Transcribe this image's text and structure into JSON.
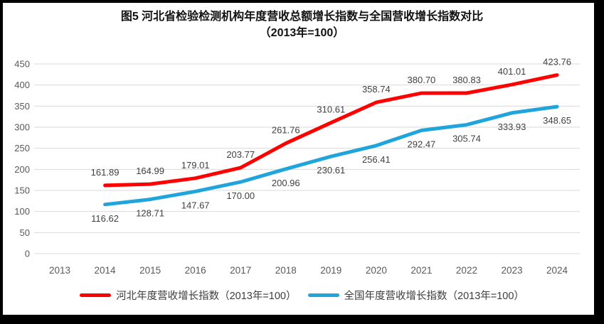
{
  "figure": {
    "title_line1": "图5  河北省检验检测机构年度营收总额增长指数与全国营收增长指数对比",
    "title_line2": "（2013年=100）"
  },
  "chart_data": {
    "type": "line",
    "title": "图5 河北省检验检测机构年度营收总额增长指数与全国营收增长指数对比（2013年=100）",
    "categories": [
      "2013",
      "2014",
      "2015",
      "2016",
      "2017",
      "2018",
      "2019",
      "2020",
      "2021",
      "2022",
      "2023",
      "2024"
    ],
    "series": [
      {
        "key": "hebei",
        "name": "河北年度营收增长指数（2013年=100）",
        "color": "#FF0000",
        "label_position": "above",
        "values": [
          null,
          161.89,
          164.99,
          179.01,
          203.77,
          261.76,
          310.61,
          358.74,
          380.7,
          380.83,
          401.01,
          423.76
        ]
      },
      {
        "key": "national",
        "name": "全国年度营收增长指数（2013年=100）",
        "color": "#1FA4DC",
        "label_position": "below",
        "values": [
          null,
          116.62,
          128.71,
          147.67,
          170.0,
          200.96,
          230.61,
          256.41,
          292.47,
          305.74,
          333.93,
          348.65
        ]
      }
    ],
    "xlabel": "",
    "ylabel": "",
    "ylim": [
      0,
      450
    ],
    "y_step": 50,
    "grid": true,
    "legend_position": "bottom",
    "colors": {
      "gridline": "#D9D9D9",
      "tick_label": "#595959",
      "data_label": "#404040",
      "frame_border": "#000000"
    }
  }
}
